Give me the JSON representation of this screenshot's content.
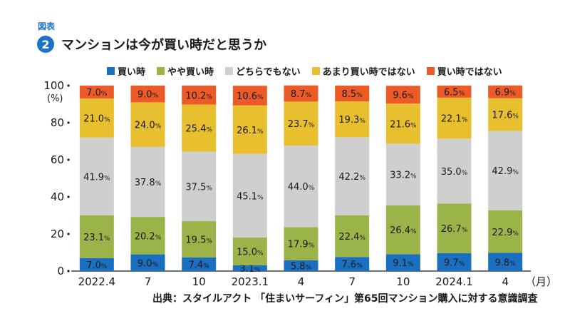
{
  "figure": {
    "label": "図表",
    "number": "2",
    "title": "マンションは今が買い時だと思うか",
    "source": "出典：スタイルアクト 「住まいサーフィン」第65回マンション購入に対する意識調査"
  },
  "colors": {
    "buy_now": "#1a6fc1",
    "somewhat_buy": "#9bb44a",
    "neutral": "#cfcfcf",
    "somewhat_not": "#e8bf2e",
    "not_buy": "#ec5a28"
  },
  "chart_data": {
    "type": "bar",
    "stacked": true,
    "orientation": "vertical",
    "categories": [
      "2022.4",
      "7",
      "10",
      "2023.1",
      "4",
      "7",
      "10",
      "2024.1",
      "4"
    ],
    "x_unit": "（月）",
    "y_unit": "(%)",
    "ylim": [
      0,
      100
    ],
    "yticks": [
      0,
      20,
      40,
      60,
      80,
      100
    ],
    "legend_position": "top",
    "value_suffix": "%",
    "series": [
      {
        "name": "買い時",
        "color": "#1a6fc1",
        "values": [
          7.0,
          9.0,
          7.4,
          3.1,
          5.8,
          7.6,
          9.1,
          9.7,
          9.8
        ]
      },
      {
        "name": "やや買い時",
        "color": "#9bb44a",
        "values": [
          23.1,
          20.2,
          19.5,
          15.0,
          17.9,
          22.4,
          26.4,
          26.7,
          22.9
        ]
      },
      {
        "name": "どちらでもない",
        "color": "#cfcfcf",
        "values": [
          41.9,
          37.8,
          37.5,
          45.1,
          44.0,
          42.2,
          33.2,
          35.0,
          42.9
        ]
      },
      {
        "name": "あまり買い時ではない",
        "color": "#e8bf2e",
        "values": [
          21.0,
          24.0,
          25.4,
          26.1,
          23.7,
          19.3,
          21.6,
          22.1,
          17.6
        ]
      },
      {
        "name": "買い時ではない",
        "color": "#ec5a28",
        "values": [
          7.0,
          9.0,
          10.2,
          10.6,
          8.7,
          8.5,
          9.6,
          6.5,
          6.9
        ]
      }
    ]
  }
}
